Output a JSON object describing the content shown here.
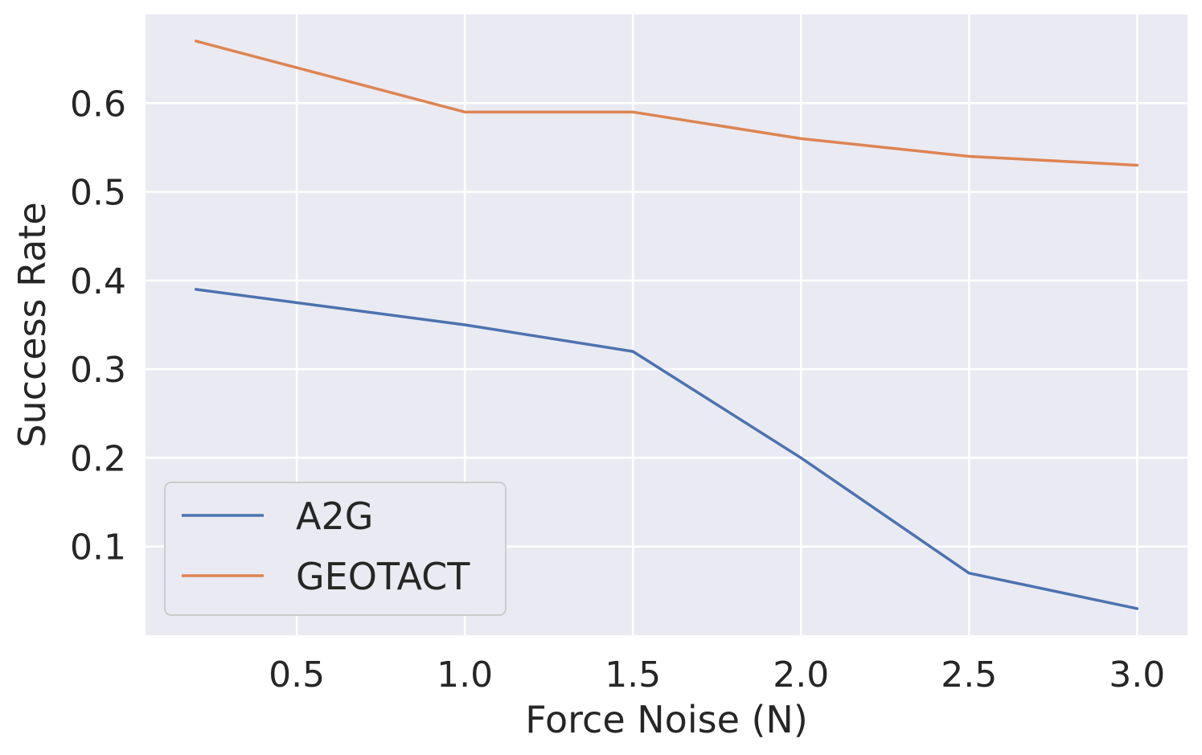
{
  "chart_data": {
    "type": "line",
    "xlabel": "Force Noise (N)",
    "ylabel": "Success Rate",
    "xlim": [
      0.05,
      3.15
    ],
    "ylim": [
      0.0,
      0.7
    ],
    "xticks": [
      "0.5",
      "1.0",
      "1.5",
      "2.0",
      "2.5",
      "3.0"
    ],
    "xtick_values": [
      0.5,
      1.0,
      1.5,
      2.0,
      2.5,
      3.0
    ],
    "yticks": [
      "0.1",
      "0.2",
      "0.3",
      "0.4",
      "0.5",
      "0.6"
    ],
    "ytick_values": [
      0.1,
      0.2,
      0.3,
      0.4,
      0.5,
      0.6
    ],
    "grid": true,
    "legend_position": "lower-left",
    "x": [
      0.2,
      1.0,
      1.5,
      2.0,
      2.5,
      3.0
    ],
    "series": [
      {
        "name": "A2G",
        "color": "#4c72b0",
        "values": [
          0.39,
          0.35,
          0.32,
          0.2,
          0.07,
          0.03
        ]
      },
      {
        "name": "GEOTACT",
        "color": "#dd8452",
        "values": [
          0.67,
          0.59,
          0.59,
          0.56,
          0.54,
          0.53
        ]
      }
    ]
  }
}
